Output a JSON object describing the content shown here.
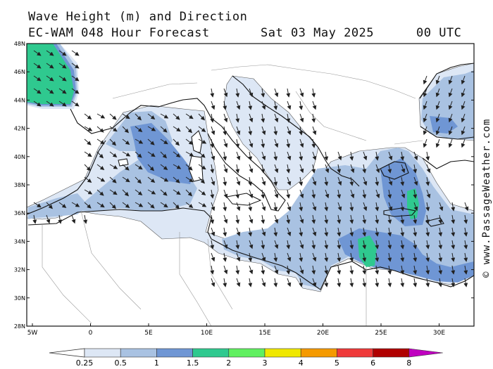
{
  "title_line1": "Wave Height (m) and Direction",
  "title_model": "EC-WAM 048 Hour Forecast",
  "title_date": "Sat 03 May 2025",
  "title_time": "00 UTC",
  "copyright": "© www.PassageWeather.com",
  "lat_labels": [
    "48N",
    "46N",
    "44N",
    "42N",
    "40N",
    "38N",
    "36N",
    "34N",
    "32N",
    "30N",
    "28N"
  ],
  "lon_labels": [
    "5W",
    "0",
    "5E",
    "10E",
    "15E",
    "20E",
    "25E",
    "30E"
  ],
  "colorbar": {
    "labels": [
      "0.25",
      "0.5",
      "1",
      "1.5",
      "2",
      "3",
      "4",
      "5",
      "6",
      "8"
    ],
    "colors": [
      "#dde7f5",
      "#a9c2e2",
      "#6f96d4",
      "#2fc98f",
      "#60f060",
      "#f0e800",
      "#f59a00",
      "#ef3a3a",
      "#b00000",
      "#c000c0"
    ]
  }
}
